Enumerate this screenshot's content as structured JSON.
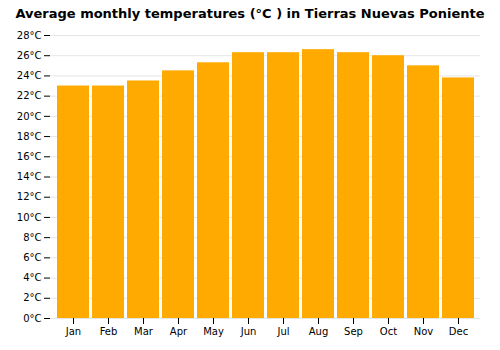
{
  "chart_data": {
    "type": "bar",
    "title": "Average monthly temperatures (°C ) in Tierras Nuevas Poniente",
    "categories": [
      "Jan",
      "Feb",
      "Mar",
      "Apr",
      "May",
      "Jun",
      "Jul",
      "Aug",
      "Sep",
      "Oct",
      "Nov",
      "Dec"
    ],
    "values": [
      23.0,
      23.0,
      23.5,
      24.5,
      25.3,
      26.3,
      26.3,
      26.6,
      26.3,
      26.0,
      25.0,
      23.8
    ],
    "color": "#FFAA00",
    "ylim": [
      0,
      28
    ],
    "yticks": [
      {
        "value": 0,
        "label": "0°C"
      },
      {
        "value": 2,
        "label": "2°C"
      },
      {
        "value": 4,
        "label": "4°C"
      },
      {
        "value": 6,
        "label": "6°C"
      },
      {
        "value": 8,
        "label": "8°C"
      },
      {
        "value": 10,
        "label": "10°C"
      },
      {
        "value": 12,
        "label": "12°C"
      },
      {
        "value": 14,
        "label": "14°C"
      },
      {
        "value": 16,
        "label": "16°C"
      },
      {
        "value": 18,
        "label": "18°C"
      },
      {
        "value": 20,
        "label": "20°C"
      },
      {
        "value": 22,
        "label": "22°C"
      },
      {
        "value": 24,
        "label": "24°C"
      },
      {
        "value": 26,
        "label": "26°C"
      },
      {
        "value": 28,
        "label": "28°C"
      }
    ],
    "grid": true
  }
}
